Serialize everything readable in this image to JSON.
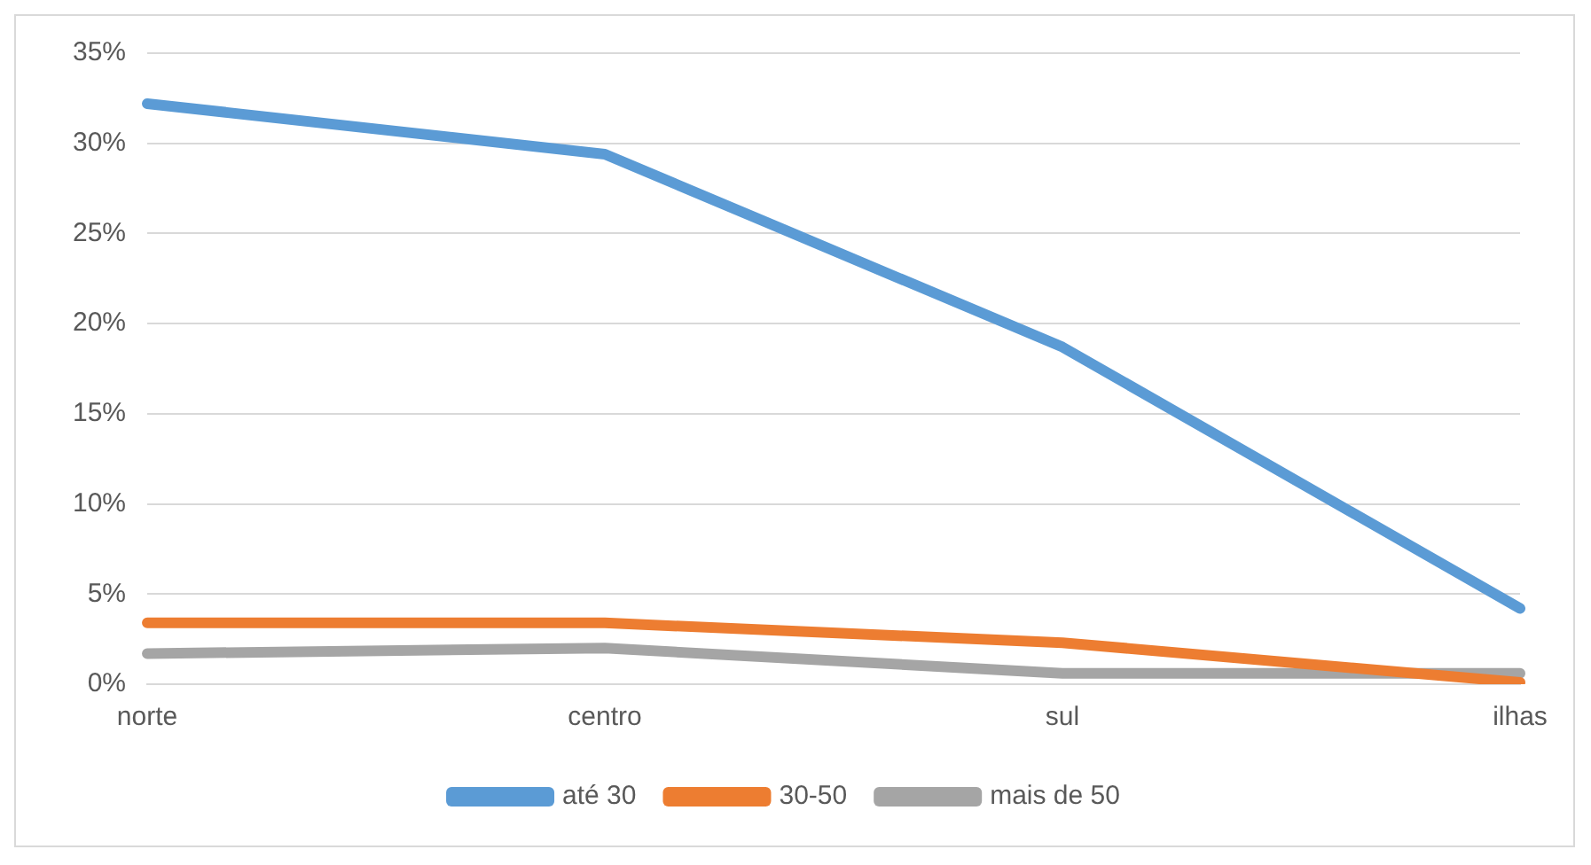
{
  "chart_data": {
    "type": "line",
    "categories": [
      "norte",
      "centro",
      "sul",
      "ilhas"
    ],
    "series": [
      {
        "name": "até 30",
        "color": "#5b9bd5",
        "values": [
          32.2,
          29.4,
          18.7,
          4.2
        ]
      },
      {
        "name": "30-50",
        "color": "#ed7d31",
        "values": [
          3.4,
          3.4,
          2.3,
          0.1
        ]
      },
      {
        "name": "mais de 50",
        "color": "#a5a5a5",
        "values": [
          1.7,
          2.0,
          0.6,
          0.6
        ]
      }
    ],
    "ylim": [
      0,
      35
    ],
    "yticks": [
      {
        "value": 0,
        "label": "0%"
      },
      {
        "value": 5,
        "label": "5%"
      },
      {
        "value": 10,
        "label": "10%"
      },
      {
        "value": 15,
        "label": "15%"
      },
      {
        "value": 20,
        "label": "20%"
      },
      {
        "value": 25,
        "label": "25%"
      },
      {
        "value": 30,
        "label": "30%"
      },
      {
        "value": 35,
        "label": "35%"
      }
    ],
    "grid": "y",
    "legend": "bottom",
    "marker": "none",
    "line_style": "solid"
  }
}
